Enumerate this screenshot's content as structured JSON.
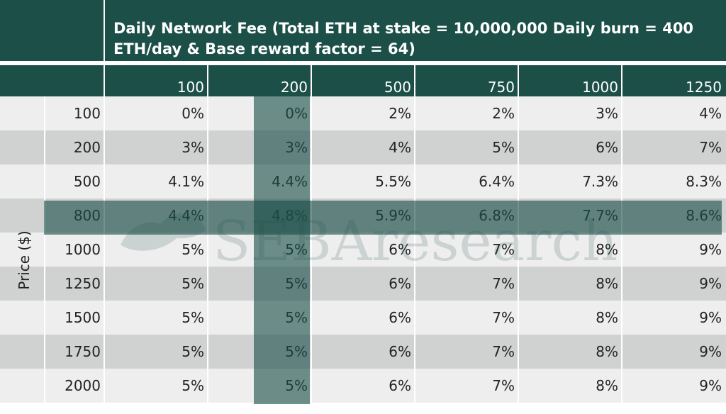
{
  "chart_data": {
    "type": "table",
    "title": "Daily Network Fee (Total ETH at stake = 10,000,000 Daily burn = 400 ETH/day & Base reward factor = 64)",
    "ylabel": "Price ($)",
    "columns": [
      "100",
      "200",
      "500",
      "750",
      "1000",
      "1250"
    ],
    "rows": [
      {
        "label": "100",
        "values": [
          "0%",
          "0%",
          "2%",
          "2%",
          "3%",
          "4%"
        ]
      },
      {
        "label": "200",
        "values": [
          "3%",
          "3%",
          "4%",
          "5%",
          "6%",
          "7%"
        ]
      },
      {
        "label": "500",
        "values": [
          "4.1%",
          "4.4%",
          "5.5%",
          "6.4%",
          "7.3%",
          "8.3%"
        ]
      },
      {
        "label": "800",
        "values": [
          "4.4%",
          "4.8%",
          "5.9%",
          "6.8%",
          "7.7%",
          "8.6%"
        ]
      },
      {
        "label": "1000",
        "values": [
          "5%",
          "5%",
          "6%",
          "7%",
          "8%",
          "9%"
        ]
      },
      {
        "label": "1250",
        "values": [
          "5%",
          "5%",
          "6%",
          "7%",
          "8%",
          "9%"
        ]
      },
      {
        "label": "1500",
        "values": [
          "5%",
          "5%",
          "6%",
          "7%",
          "8%",
          "9%"
        ]
      },
      {
        "label": "1750",
        "values": [
          "5%",
          "5%",
          "6%",
          "7%",
          "8%",
          "9%"
        ]
      },
      {
        "label": "2000",
        "values": [
          "5%",
          "5%",
          "6%",
          "7%",
          "8%",
          "9%"
        ]
      }
    ],
    "highlight_column": "200",
    "highlight_row": "800"
  },
  "watermark": "SEBAresearch",
  "colors": {
    "header": "#1b4f48",
    "row_light": "#eeeeee",
    "row_dark": "#d0d2d1",
    "highlight": "#1b4f48"
  }
}
